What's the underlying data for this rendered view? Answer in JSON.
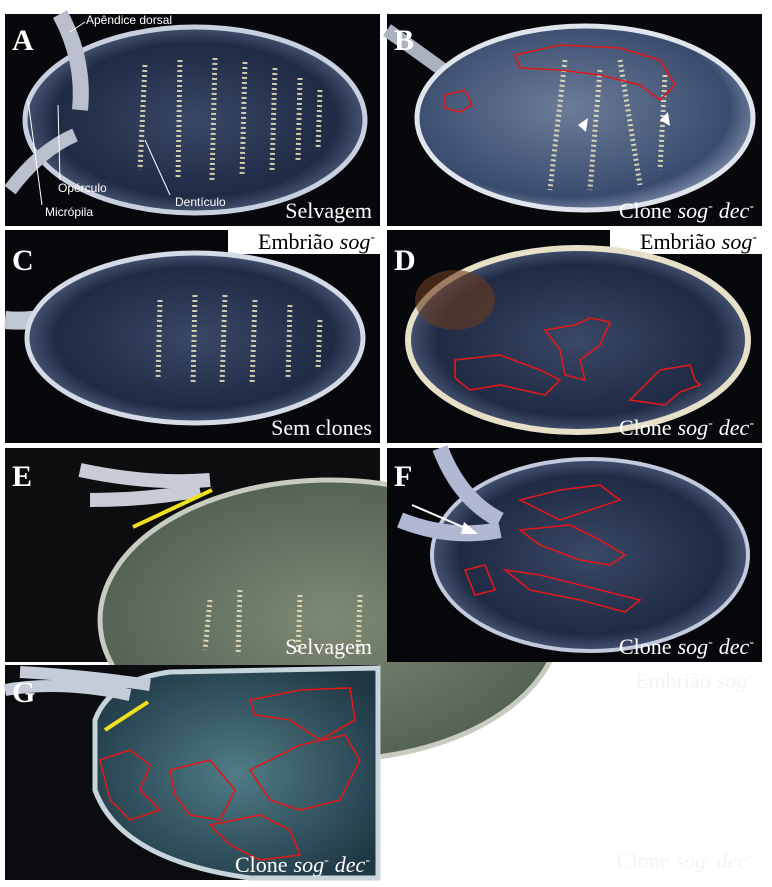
{
  "panels": [
    {
      "letter": "A",
      "labels": {
        "dorsal": "Apêndice dorsal",
        "operculum": "Opérculo",
        "micropyle": "Micrópila",
        "denticle": "Dentículo"
      },
      "caption": "Selvagem"
    },
    {
      "letter": "B",
      "caption": {
        "word": "Clone",
        "gene1": "sog",
        "sup1": "-",
        "gene2": "dec",
        "sup2": "-"
      }
    },
    {
      "letter": "C",
      "header": {
        "word": "Embrião",
        "gene": "sog",
        "sup": "-"
      },
      "caption": "Sem clones"
    },
    {
      "letter": "D",
      "header": {
        "word": "Embrião",
        "gene": "sog",
        "sup": "-"
      },
      "caption": {
        "word": "Clone",
        "gene1": "sog",
        "sup1": "-",
        "gene2": "dec",
        "sup2": "-"
      }
    },
    {
      "letter": "E",
      "caption": "Selvagem"
    },
    {
      "letter": "F",
      "caption": {
        "word": "Clone",
        "gene1": "sog",
        "sup1": "-",
        "gene2": "dec",
        "sup2": "-"
      }
    },
    {
      "letter": "G",
      "caption": {
        "word": "Clone",
        "gene1": "sog",
        "sup1": "-",
        "gene2": "dec",
        "sup2": "-"
      }
    }
  ],
  "faint": {
    "header": {
      "word": "Embrião",
      "gene": "sog",
      "sup": "-"
    },
    "caption": {
      "word": "Clone",
      "gene1": "sog",
      "sup1": "-",
      "gene2": "dec",
      "sup2": "-"
    }
  }
}
